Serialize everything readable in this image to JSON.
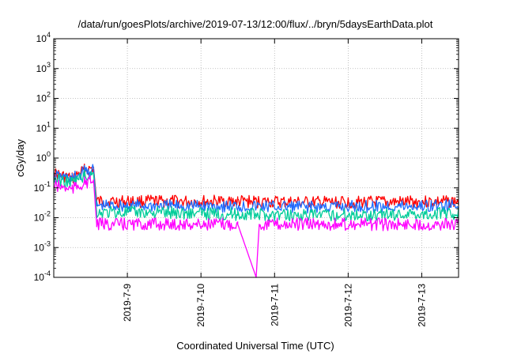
{
  "chart_data": {
    "type": "line",
    "title": "/data/run/goesPlots/archive/2019-07-13/12:00/flux/../bryn/5daysEarthData.plot",
    "xlabel": "Coordinated Universal Time (UTC)",
    "ylabel": "cGy/day",
    "yscale": "log",
    "ylim": [
      0.0001,
      10000
    ],
    "xlim": [
      "2019-07-08 00:00",
      "2019-07-13 12:00"
    ],
    "grid": true,
    "yticks": [
      {
        "value": 0.0001,
        "base": "10",
        "exp": "-4"
      },
      {
        "value": 0.001,
        "base": "10",
        "exp": "-3"
      },
      {
        "value": 0.01,
        "base": "10",
        "exp": "-2"
      },
      {
        "value": 0.1,
        "base": "10",
        "exp": "-1"
      },
      {
        "value": 1,
        "base": "10",
        "exp": "0"
      },
      {
        "value": 10,
        "base": "10",
        "exp": "1"
      },
      {
        "value": 100,
        "base": "10",
        "exp": "2"
      },
      {
        "value": 1000,
        "base": "10",
        "exp": "3"
      },
      {
        "value": 10000,
        "base": "10",
        "exp": "4"
      }
    ],
    "xticks": [
      {
        "value": "2019-07-09 00:00",
        "label": "2019-7-9"
      },
      {
        "value": "2019-07-10 00:00",
        "label": "2019-7-10"
      },
      {
        "value": "2019-07-11 00:00",
        "label": "2019-7-11"
      },
      {
        "value": "2019-07-12 00:00",
        "label": "2019-7-12"
      },
      {
        "value": "2019-07-13 00:00",
        "label": "2019-7-13"
      }
    ],
    "series": [
      {
        "color": "#ff0000",
        "points": [
          [
            "2019-07-08 00:00",
            0.3
          ],
          [
            "2019-07-08 06:00",
            0.2
          ],
          [
            "2019-07-08 10:00",
            0.4
          ],
          [
            "2019-07-08 13:00",
            0.45
          ],
          [
            "2019-07-08 14:00",
            0.035
          ],
          [
            "2019-07-09 12:00",
            0.035
          ],
          [
            "2019-07-10 12:00",
            0.035
          ],
          [
            "2019-07-11 12:00",
            0.032
          ],
          [
            "2019-07-12 12:00",
            0.033
          ],
          [
            "2019-07-13 12:00",
            0.035
          ]
        ]
      },
      {
        "color": "#1e6cff",
        "points": [
          [
            "2019-07-08 00:00",
            0.25
          ],
          [
            "2019-07-08 06:00",
            0.2
          ],
          [
            "2019-07-08 10:00",
            0.35
          ],
          [
            "2019-07-08 13:00",
            0.4
          ],
          [
            "2019-07-08 14:00",
            0.025
          ],
          [
            "2019-07-09 12:00",
            0.025
          ],
          [
            "2019-07-10 12:00",
            0.024
          ],
          [
            "2019-07-11 12:00",
            0.023
          ],
          [
            "2019-07-12 12:00",
            0.024
          ],
          [
            "2019-07-13 12:00",
            0.025
          ]
        ]
      },
      {
        "color": "#00cc99",
        "points": [
          [
            "2019-07-08 00:00",
            0.2
          ],
          [
            "2019-07-08 06:00",
            0.15
          ],
          [
            "2019-07-08 10:00",
            0.25
          ],
          [
            "2019-07-08 13:00",
            0.28
          ],
          [
            "2019-07-08 14:00",
            0.015
          ],
          [
            "2019-07-09 12:00",
            0.015
          ],
          [
            "2019-07-10 12:00",
            0.013
          ],
          [
            "2019-07-11 12:00",
            0.012
          ],
          [
            "2019-07-12 12:00",
            0.013
          ],
          [
            "2019-07-13 12:00",
            0.014
          ]
        ]
      },
      {
        "color": "#ff00ff",
        "points": [
          [
            "2019-07-08 00:00",
            0.12
          ],
          [
            "2019-07-08 06:00",
            0.09
          ],
          [
            "2019-07-08 10:00",
            0.15
          ],
          [
            "2019-07-08 13:00",
            0.17
          ],
          [
            "2019-07-08 14:00",
            0.006
          ],
          [
            "2019-07-09 12:00",
            0.006
          ],
          [
            "2019-07-10 12:00",
            0.006
          ],
          [
            "2019-07-10 18:00",
            0.0001
          ],
          [
            "2019-07-10 19:00",
            0.006
          ],
          [
            "2019-07-11 12:00",
            0.006
          ],
          [
            "2019-07-12 12:00",
            0.006
          ],
          [
            "2019-07-13 12:00",
            0.006
          ]
        ]
      }
    ]
  }
}
